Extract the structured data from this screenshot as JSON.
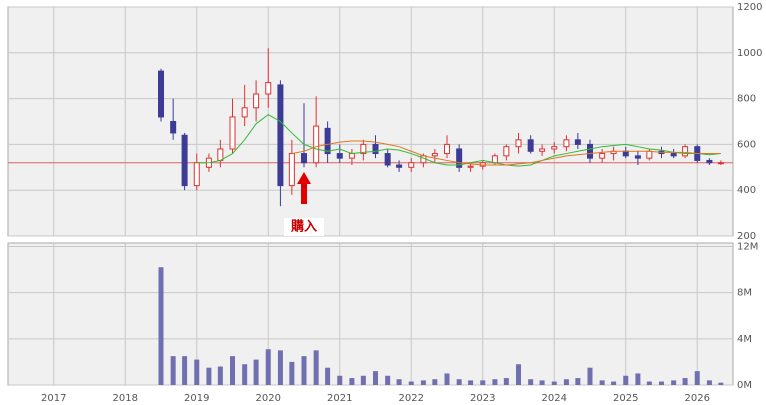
{
  "chart_data": {
    "type": "candlestick",
    "x": [
      2018.5,
      2018.67,
      2018.83,
      2019.0,
      2019.17,
      2019.33,
      2019.5,
      2019.67,
      2019.83,
      2020.0,
      2020.17,
      2020.33,
      2020.5,
      2020.67,
      2020.83,
      2021.0,
      2021.17,
      2021.33,
      2021.5,
      2021.67,
      2021.83,
      2022.0,
      2022.17,
      2022.33,
      2022.5,
      2022.67,
      2022.83,
      2023.0,
      2023.17,
      2023.33,
      2023.5,
      2023.67,
      2023.83,
      2024.0,
      2024.17,
      2024.33,
      2024.5,
      2024.67,
      2024.83,
      2025.0,
      2025.17,
      2025.33,
      2025.5,
      2025.67,
      2025.83,
      2026.0,
      2026.17,
      2026.33
    ],
    "open": [
      920,
      700,
      640,
      420,
      500,
      530,
      580,
      720,
      760,
      820,
      860,
      420,
      560,
      520,
      670,
      560,
      540,
      560,
      600,
      560,
      510,
      500,
      520,
      550,
      560,
      580,
      500,
      505,
      520,
      550,
      590,
      620,
      570,
      580,
      590,
      620,
      600,
      540,
      560,
      570,
      550,
      540,
      570,
      560,
      550,
      590,
      530,
      520
    ],
    "high": [
      930,
      800,
      650,
      560,
      560,
      620,
      800,
      860,
      880,
      1020,
      880,
      620,
      780,
      810,
      700,
      600,
      580,
      620,
      640,
      580,
      530,
      540,
      560,
      580,
      640,
      600,
      520,
      530,
      560,
      600,
      650,
      640,
      600,
      610,
      640,
      650,
      620,
      580,
      590,
      590,
      570,
      580,
      590,
      580,
      600,
      600,
      540,
      530
    ],
    "low": [
      700,
      620,
      400,
      400,
      480,
      500,
      560,
      680,
      700,
      760,
      330,
      380,
      500,
      500,
      520,
      520,
      510,
      530,
      540,
      500,
      480,
      480,
      500,
      520,
      540,
      480,
      480,
      490,
      510,
      530,
      560,
      560,
      550,
      560,
      570,
      580,
      520,
      520,
      530,
      540,
      510,
      530,
      540,
      540,
      540,
      520,
      510,
      510
    ],
    "close": [
      720,
      650,
      420,
      520,
      540,
      580,
      720,
      760,
      820,
      870,
      420,
      560,
      520,
      680,
      560,
      540,
      560,
      600,
      560,
      510,
      500,
      520,
      550,
      560,
      600,
      500,
      505,
      520,
      550,
      590,
      620,
      570,
      580,
      590,
      620,
      600,
      540,
      560,
      570,
      550,
      540,
      570,
      560,
      550,
      590,
      530,
      520,
      520
    ],
    "volume": [
      10.2,
      2.5,
      2.5,
      2.2,
      1.5,
      1.6,
      2.5,
      1.8,
      2.2,
      3.1,
      3.0,
      2.0,
      2.5,
      3.0,
      1.5,
      0.8,
      0.6,
      0.8,
      1.2,
      0.8,
      0.5,
      0.3,
      0.4,
      0.5,
      1.0,
      0.5,
      0.4,
      0.4,
      0.5,
      0.6,
      1.8,
      0.5,
      0.4,
      0.3,
      0.5,
      0.6,
      1.5,
      0.4,
      0.3,
      0.8,
      1.0,
      0.3,
      0.3,
      0.4,
      0.6,
      1.2,
      0.4,
      0.2
    ],
    "up_color": "#dd3333",
    "down_color": "#3c3c96",
    "volume_color": "#7070b0",
    "ma_series": [
      {
        "color": "#33bb33",
        "values": [
          null,
          null,
          null,
          520,
          520,
          530,
          560,
          620,
          690,
          730,
          700,
          650,
          600,
          580,
          570,
          580,
          560,
          565,
          570,
          580,
          575,
          560,
          540,
          520,
          510,
          510,
          520,
          530,
          520,
          510,
          505,
          510,
          530,
          550,
          560,
          570,
          580,
          590,
          595,
          600,
          590,
          580,
          575,
          565,
          560,
          560,
          555,
          560
        ]
      },
      {
        "color": "#dd7722",
        "values": [
          null,
          null,
          null,
          null,
          null,
          null,
          null,
          null,
          null,
          null,
          null,
          560,
          570,
          590,
          600,
          610,
          615,
          615,
          610,
          600,
          590,
          570,
          550,
          540,
          530,
          520,
          515,
          510,
          510,
          510,
          515,
          520,
          530,
          540,
          550,
          555,
          560,
          565,
          570,
          570,
          570,
          570,
          565,
          565,
          565,
          560,
          560,
          560
        ]
      }
    ],
    "reference_line": {
      "value": 520,
      "color": "#e06060"
    },
    "annotation": {
      "text": "購入",
      "x": 2020.5
    },
    "xlim": [
      2016.36,
      2026.5
    ],
    "xticks": [
      2017,
      2018,
      2019,
      2020,
      2021,
      2022,
      2023,
      2024,
      2025,
      2026
    ],
    "ylim": [
      200,
      1200
    ],
    "yticks": [
      200,
      400,
      600,
      800,
      1000,
      1200
    ],
    "volume_lim": [
      0,
      12.3
    ],
    "volume_ticks": [
      {
        "value": 0,
        "label": "0M"
      },
      {
        "value": 4,
        "label": "4M"
      },
      {
        "value": 8,
        "label": "8M"
      },
      {
        "value": 12,
        "label": "12M"
      }
    ],
    "grid": true
  }
}
